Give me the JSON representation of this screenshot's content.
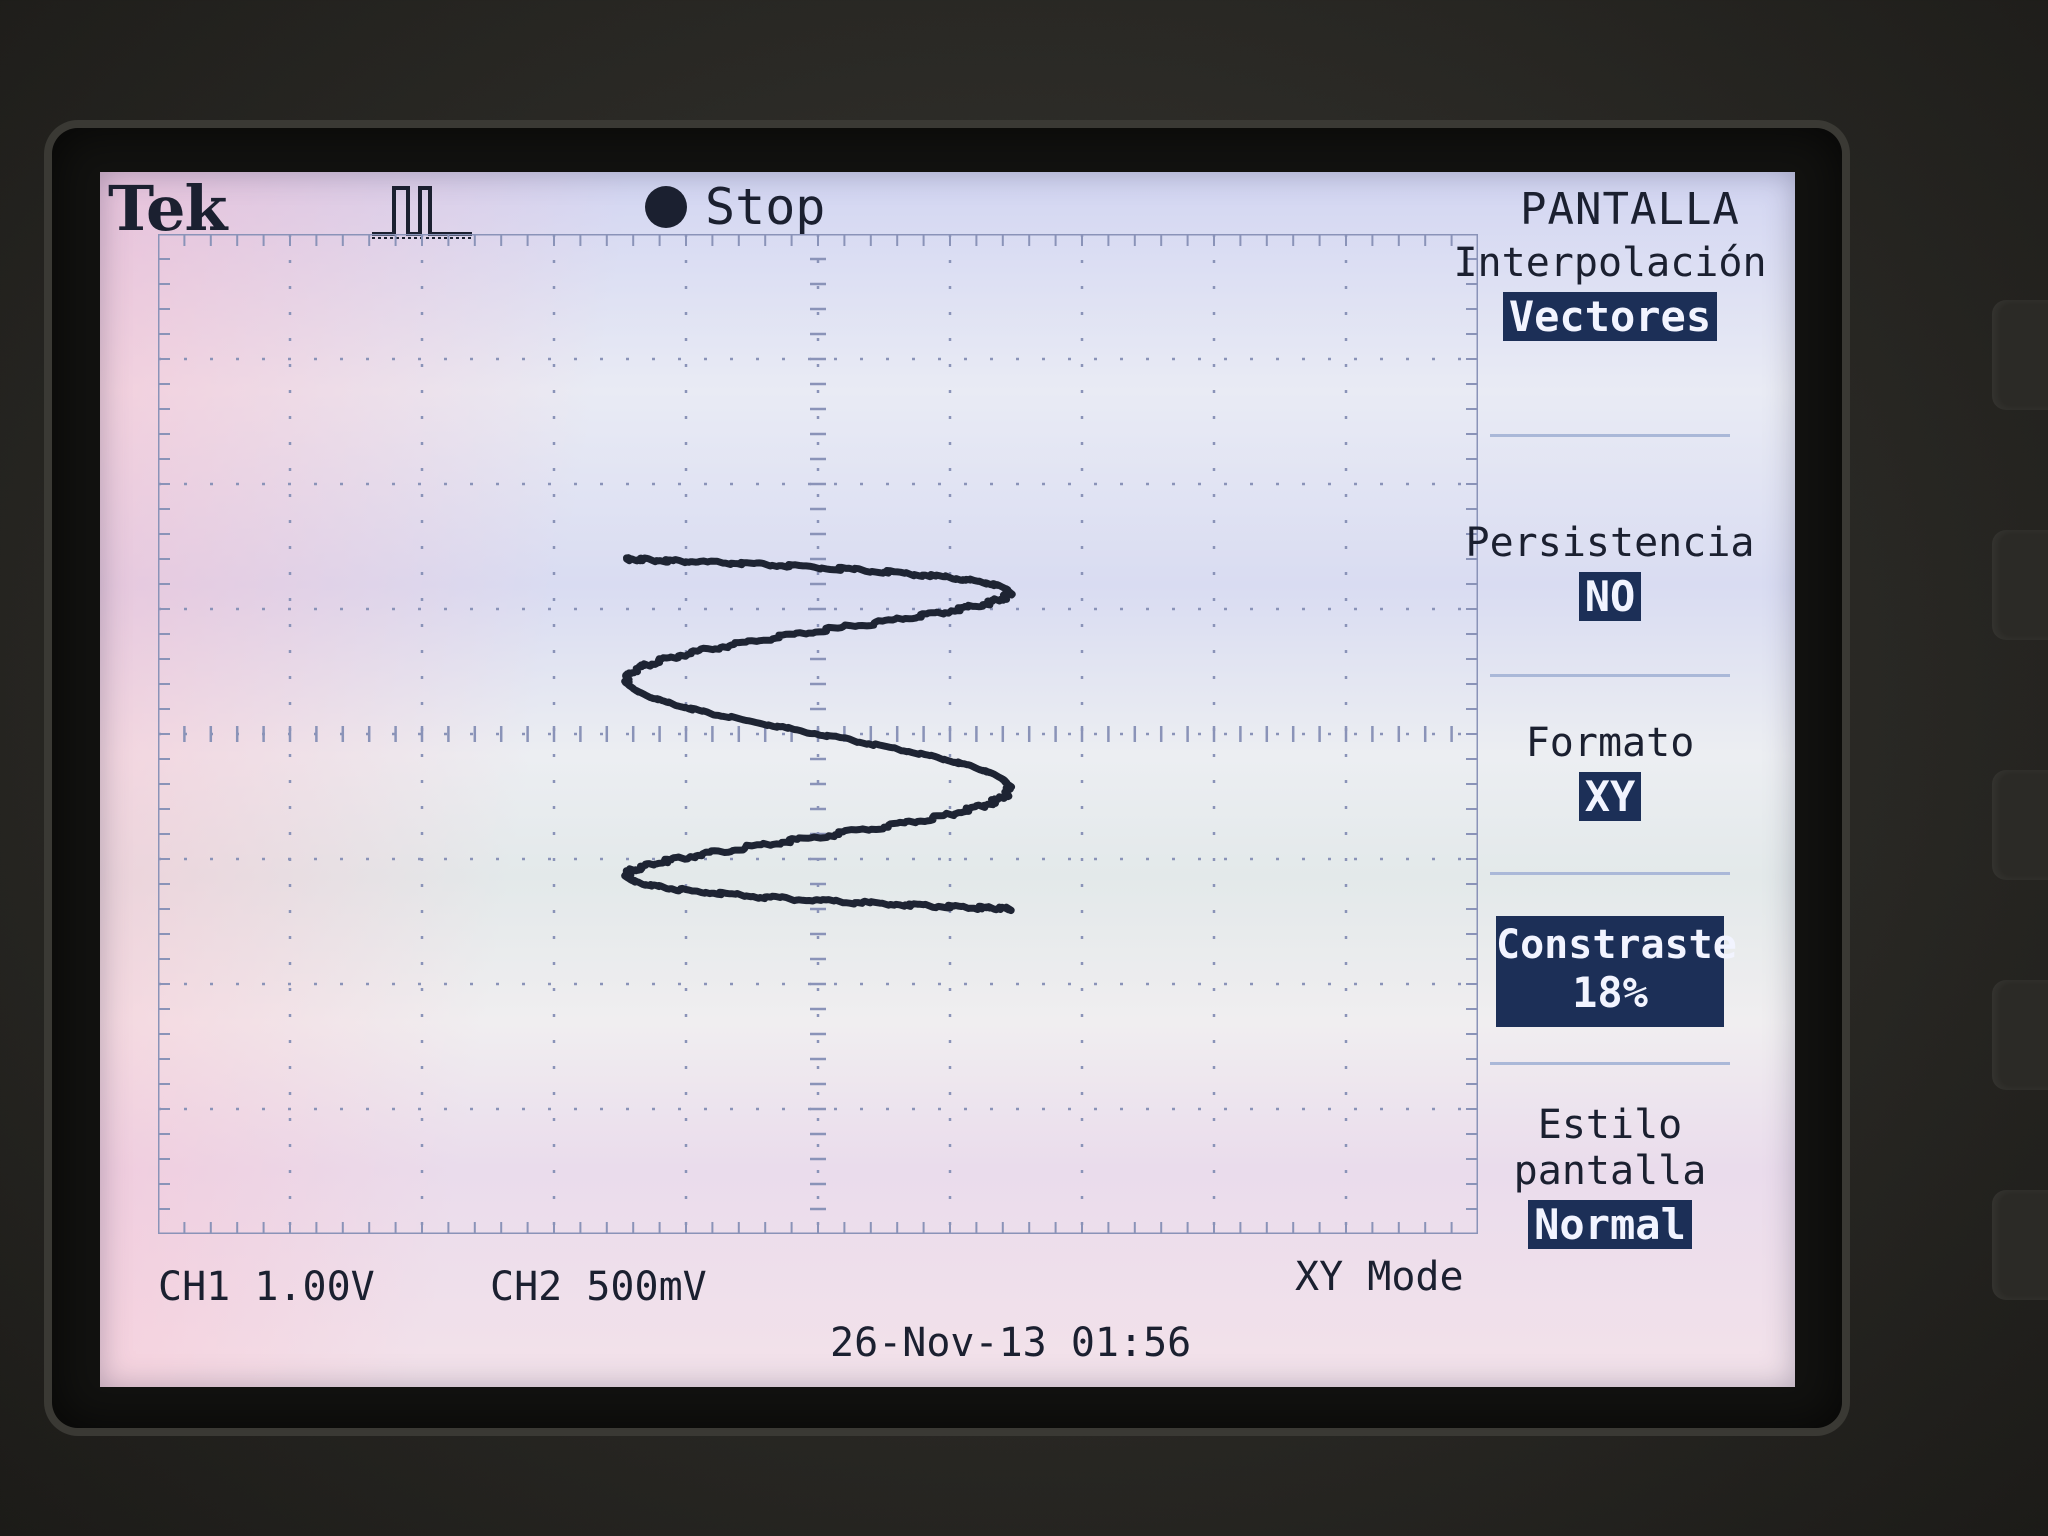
{
  "header": {
    "brand": "Tek",
    "trigger_icon": "pulse-trigger-icon",
    "run_state": "Stop",
    "menu_title": "PANTALLA"
  },
  "menu": {
    "interpolation": {
      "label": "Interpolación",
      "value": "Vectores"
    },
    "persistence": {
      "label": "Persistencia",
      "value": "NO"
    },
    "format": {
      "label": "Formato",
      "value": "XY"
    },
    "contrast": {
      "label": "Constraste",
      "value": "18%"
    },
    "display_style": {
      "label": "Estilo pantalla",
      "value": "Normal"
    }
  },
  "footer": {
    "ch1": "CH1  1.00V",
    "ch2": "CH2  500mV",
    "mode": "XY Mode",
    "datetime": "26-Nov-13 01:56"
  },
  "colors": {
    "trace": "#1e2433",
    "highlight": "#1c2f57"
  }
}
